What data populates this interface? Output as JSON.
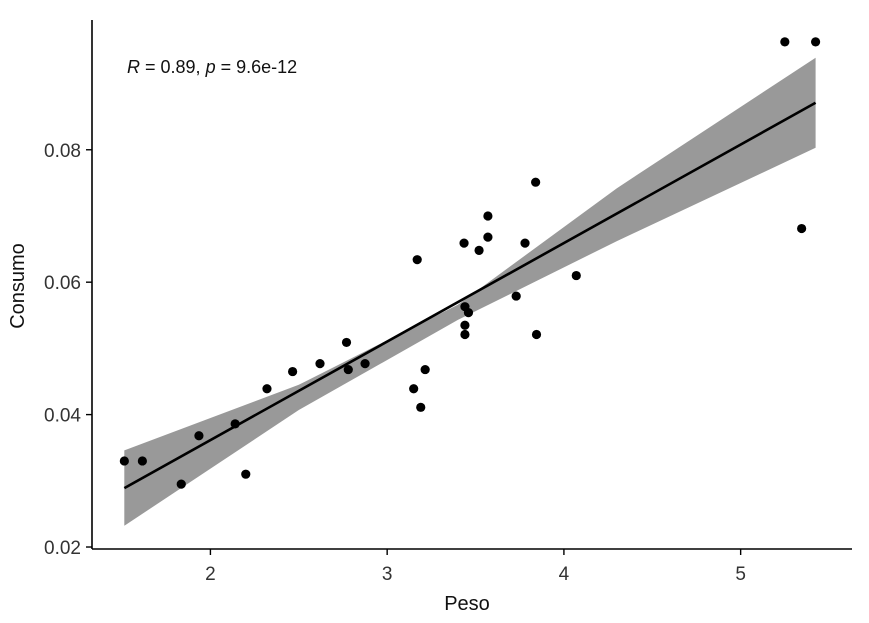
{
  "chart_data": {
    "type": "scatter",
    "xlabel": "Peso",
    "ylabel": "Consumo",
    "xlim": [
      1.33,
      5.63
    ],
    "ylim": [
      0.0197,
      0.0996
    ],
    "xticks": [
      2,
      3,
      4,
      5
    ],
    "xtick_labels": [
      "2",
      "3",
      "4",
      "5"
    ],
    "yticks": [
      0.02,
      0.04,
      0.06,
      0.08
    ],
    "ytick_labels": [
      "0.02",
      "0.04",
      "0.06",
      "0.08"
    ],
    "grid": false,
    "annotation": {
      "r_symbol": "R",
      "r_value": " = 0.89, ",
      "p_symbol": "p",
      "p_value": " = 9.6e-12"
    },
    "regression": {
      "x_start": 1.513,
      "x_end": 5.424,
      "line": [
        [
          1.513,
          0.0289
        ],
        [
          5.424,
          0.0871
        ]
      ],
      "ci_lower": [
        [
          1.513,
          0.0232
        ],
        [
          2.5,
          0.0407
        ],
        [
          3.4,
          0.0543
        ],
        [
          4.3,
          0.0662
        ],
        [
          5.424,
          0.0803
        ]
      ],
      "ci_upper": [
        [
          1.513,
          0.0346
        ],
        [
          2.5,
          0.0445
        ],
        [
          3.4,
          0.0566
        ],
        [
          4.3,
          0.0742
        ],
        [
          5.424,
          0.0939
        ]
      ]
    },
    "points": [
      {
        "x": 1.513,
        "y": 0.033
      },
      {
        "x": 1.615,
        "y": 0.033
      },
      {
        "x": 1.835,
        "y": 0.0295
      },
      {
        "x": 1.935,
        "y": 0.0368
      },
      {
        "x": 2.14,
        "y": 0.0386
      },
      {
        "x": 2.2,
        "y": 0.031
      },
      {
        "x": 2.32,
        "y": 0.0439
      },
      {
        "x": 2.465,
        "y": 0.0465
      },
      {
        "x": 2.62,
        "y": 0.0477
      },
      {
        "x": 2.77,
        "y": 0.0509
      },
      {
        "x": 2.78,
        "y": 0.0468
      },
      {
        "x": 2.875,
        "y": 0.0477
      },
      {
        "x": 3.15,
        "y": 0.0439
      },
      {
        "x": 3.17,
        "y": 0.0634
      },
      {
        "x": 3.19,
        "y": 0.0411
      },
      {
        "x": 3.215,
        "y": 0.0468
      },
      {
        "x": 3.435,
        "y": 0.0659
      },
      {
        "x": 3.44,
        "y": 0.0521
      },
      {
        "x": 3.44,
        "y": 0.0535
      },
      {
        "x": 3.44,
        "y": 0.0563
      },
      {
        "x": 3.46,
        "y": 0.0554
      },
      {
        "x": 3.52,
        "y": 0.0648
      },
      {
        "x": 3.57,
        "y": 0.0668
      },
      {
        "x": 3.57,
        "y": 0.07
      },
      {
        "x": 3.73,
        "y": 0.0579
      },
      {
        "x": 3.78,
        "y": 0.0659
      },
      {
        "x": 3.84,
        "y": 0.0751
      },
      {
        "x": 3.845,
        "y": 0.0521
      },
      {
        "x": 4.07,
        "y": 0.061
      },
      {
        "x": 5.25,
        "y": 0.0963
      },
      {
        "x": 5.345,
        "y": 0.0681
      },
      {
        "x": 5.424,
        "y": 0.0963
      }
    ],
    "colors": {
      "points": "#000000",
      "line": "#000000",
      "ci_band": "#999999",
      "axis": "#000000"
    }
  }
}
